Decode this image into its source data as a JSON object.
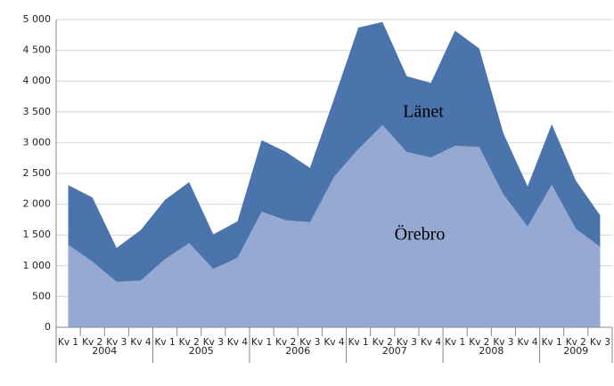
{
  "chart_data": {
    "type": "area",
    "categories": [
      "Kv 1",
      "Kv 2",
      "Kv 3",
      "Kv 4",
      "Kv 1",
      "Kv 2",
      "Kv 3",
      "Kv 4",
      "Kv 1",
      "Kv 2",
      "Kv 3",
      "Kv 4",
      "Kv 1",
      "Kv 2",
      "Kv 3",
      "Kv 4",
      "Kv 1",
      "Kv 2",
      "Kv 3",
      "Kv 4",
      "Kv 1",
      "Kv 2",
      "Kv 3"
    ],
    "groups": [
      "2004",
      "2005",
      "2006",
      "2007",
      "2008",
      "2009"
    ],
    "series": [
      {
        "name": "Länet",
        "color": "#4a74ab",
        "values": [
          2310,
          2110,
          1290,
          1580,
          2070,
          2360,
          1510,
          1720,
          3040,
          2850,
          2590,
          3720,
          4870,
          4960,
          4080,
          3970,
          4820,
          4530,
          3150,
          2290,
          3300,
          2380,
          1820
        ]
      },
      {
        "name": "Örebro",
        "color": "#95a9d3",
        "values": [
          1340,
          1070,
          740,
          760,
          1110,
          1370,
          950,
          1130,
          1880,
          1740,
          1710,
          2450,
          2900,
          3290,
          2850,
          2760,
          2950,
          2930,
          2160,
          1640,
          2320,
          1600,
          1310
        ]
      }
    ],
    "ylim": [
      0,
      5000
    ],
    "yticks": [
      0,
      500,
      {
        "value": 1000,
        "label": "1 000"
      },
      {
        "value": 1500,
        "label": "1 500"
      },
      {
        "value": 2000,
        "label": "2 000"
      },
      {
        "value": 2500,
        "label": "2 500"
      },
      {
        "value": 3000,
        "label": "3 000"
      },
      {
        "value": 3500,
        "label": "3 500"
      },
      {
        "value": 4000,
        "label": "4 000"
      },
      {
        "value": 4500,
        "label": "4 500"
      },
      {
        "value": 5000,
        "label": "5 000"
      }
    ],
    "grid": true
  }
}
